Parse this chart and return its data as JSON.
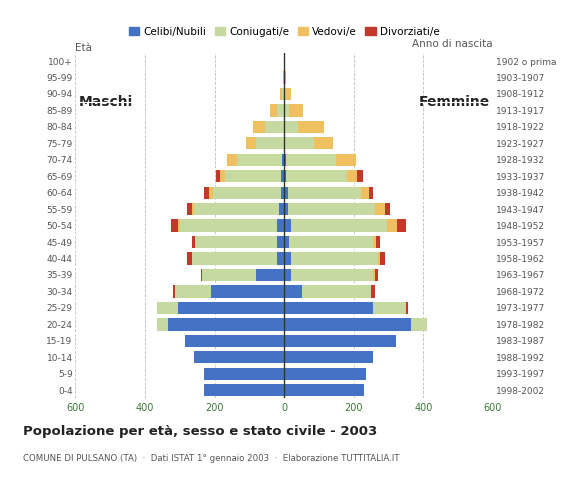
{
  "age_groups": [
    "0-4",
    "5-9",
    "10-14",
    "15-19",
    "20-24",
    "25-29",
    "30-34",
    "35-39",
    "40-44",
    "45-49",
    "50-54",
    "55-59",
    "60-64",
    "65-69",
    "70-74",
    "75-79",
    "80-84",
    "85-89",
    "90-94",
    "95-99",
    "100+"
  ],
  "birth_years": [
    "1998-2002",
    "1993-1997",
    "1988-1992",
    "1983-1987",
    "1978-1982",
    "1973-1977",
    "1968-1972",
    "1963-1967",
    "1958-1962",
    "1953-1957",
    "1948-1952",
    "1943-1947",
    "1938-1942",
    "1933-1937",
    "1928-1932",
    "1923-1927",
    "1918-1922",
    "1913-1917",
    "1908-1912",
    "1903-1907",
    "1902 o prima"
  ],
  "males": {
    "celibe": [
      230,
      230,
      260,
      285,
      335,
      305,
      210,
      80,
      20,
      20,
      20,
      15,
      10,
      10,
      5,
      0,
      0,
      0,
      0,
      0,
      0
    ],
    "coniugato": [
      0,
      0,
      0,
      0,
      30,
      60,
      105,
      155,
      245,
      235,
      280,
      245,
      195,
      160,
      130,
      80,
      55,
      20,
      5,
      2,
      2
    ],
    "vedovo": [
      0,
      0,
      0,
      0,
      0,
      0,
      0,
      0,
      0,
      0,
      5,
      5,
      10,
      15,
      30,
      30,
      35,
      20,
      8,
      2,
      0
    ],
    "divorziato": [
      0,
      0,
      0,
      0,
      0,
      0,
      5,
      5,
      15,
      10,
      20,
      15,
      15,
      10,
      0,
      0,
      0,
      0,
      0,
      0,
      0
    ]
  },
  "females": {
    "nubile": [
      230,
      235,
      255,
      320,
      365,
      255,
      50,
      20,
      20,
      15,
      20,
      10,
      10,
      5,
      5,
      0,
      0,
      0,
      0,
      0,
      0
    ],
    "coniugata": [
      0,
      0,
      0,
      0,
      45,
      95,
      200,
      235,
      250,
      240,
      275,
      250,
      210,
      175,
      145,
      85,
      40,
      15,
      5,
      2,
      2
    ],
    "vedova": [
      0,
      0,
      0,
      0,
      0,
      0,
      0,
      5,
      5,
      10,
      30,
      30,
      25,
      30,
      55,
      55,
      75,
      40,
      15,
      3,
      0
    ],
    "divorziata": [
      0,
      0,
      0,
      0,
      0,
      5,
      10,
      10,
      15,
      10,
      25,
      15,
      10,
      15,
      0,
      0,
      0,
      0,
      0,
      0,
      0
    ]
  },
  "color_celibe": "#4472c4",
  "color_coniugato": "#c5d9a0",
  "color_vedovo": "#f0c060",
  "color_divorziato": "#c0392b",
  "xlim": 600,
  "title": "Popolazione per età, sesso e stato civile - 2003",
  "subtitle": "COMUNE DI PULSANO (TA)  ·  Dati ISTAT 1° gennaio 2003  ·  Elaborazione TUTTITALIA.IT",
  "legend_labels": [
    "Celibi/Nubili",
    "Coniugati/e",
    "Vedovi/e",
    "Divorziati/e"
  ],
  "ylabel_left": "Età",
  "ylabel_right": "Anno di nascita",
  "label_maschi": "Maschi",
  "label_femmine": "Femmine",
  "bg_color": "#ffffff",
  "bar_height": 0.75
}
